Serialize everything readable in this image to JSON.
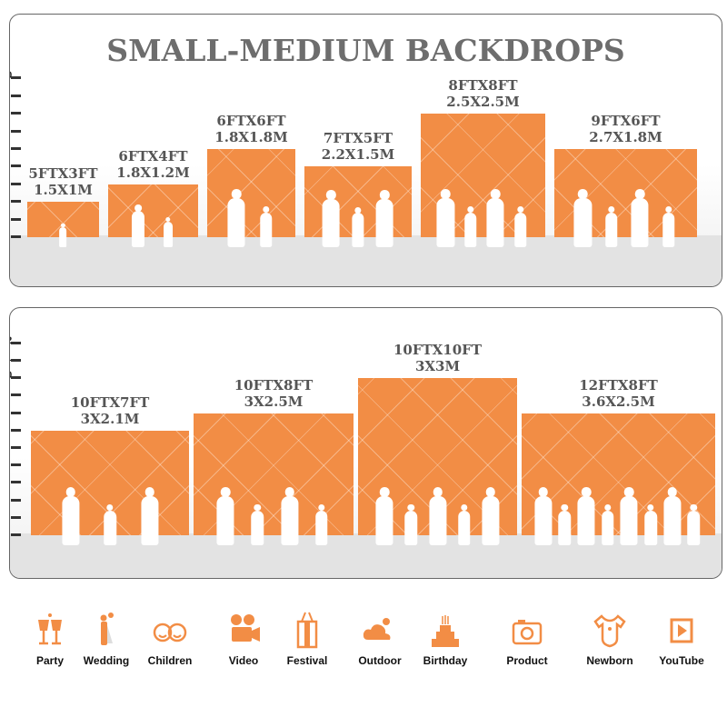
{
  "title": "SMALL-MEDIUM BACKDROPS",
  "accent_color": "#f28d45",
  "panels": [
    {
      "scale_ticks": [
        "1",
        "2",
        "3",
        "4",
        "5",
        "6",
        "7",
        "8",
        "9",
        "10"
      ],
      "bars": [
        {
          "ft": "5FTX3FT",
          "m": "1.5X1M",
          "width_ft": 5,
          "height_ft": 3,
          "people": 1
        },
        {
          "ft": "6FTX4FT",
          "m": "1.8X1.2M",
          "width_ft": 6,
          "height_ft": 4,
          "people": 2
        },
        {
          "ft": "6FTX6FT",
          "m": "1.8X1.8M",
          "width_ft": 6,
          "height_ft": 6,
          "people": 2
        },
        {
          "ft": "7FTX5FT",
          "m": "2.2X1.5M",
          "width_ft": 7,
          "height_ft": 5,
          "people": 3
        },
        {
          "ft": "8FTX8FT",
          "m": "2.5X2.5M",
          "width_ft": 8,
          "height_ft": 8,
          "people": 4
        },
        {
          "ft": "9FTX6FT",
          "m": "2.7X1.8M",
          "width_ft": 9,
          "height_ft": 6,
          "people": 4
        }
      ]
    },
    {
      "scale_ticks": [
        "1",
        "2",
        "3",
        "4",
        "5",
        "6",
        "7",
        "8",
        "9",
        "10",
        "11",
        "12"
      ],
      "bars": [
        {
          "ft": "10FTX7FT",
          "m": "3X2.1M",
          "width_ft": 10,
          "height_ft": 7,
          "people": 3
        },
        {
          "ft": "10FTX8FT",
          "m": "3X2.5M",
          "width_ft": 10,
          "height_ft": 8,
          "people": 4
        },
        {
          "ft": "10FTX10FT",
          "m": "3X3M",
          "width_ft": 10,
          "height_ft": 10,
          "people": 5
        },
        {
          "ft": "12FTX8FT",
          "m": "3.6X2.5M",
          "width_ft": 12,
          "height_ft": 8,
          "people": 8
        }
      ]
    }
  ],
  "usages": [
    {
      "label": "Party",
      "icon": "champagne-glasses-icon"
    },
    {
      "label": "Wedding",
      "icon": "wedding-couple-icon"
    },
    {
      "label": "Children",
      "icon": "children-faces-icon"
    },
    {
      "label": "Video",
      "icon": "film-camera-icon"
    },
    {
      "label": "Festival",
      "icon": "gift-box-icon"
    },
    {
      "label": "Outdoor",
      "icon": "cloud-icon"
    },
    {
      "label": "Birthday",
      "icon": "birthday-cake-icon"
    },
    {
      "label": "Product",
      "icon": "camera-icon"
    },
    {
      "label": "Newborn",
      "icon": "baby-onesie-icon"
    },
    {
      "label": "YouTube",
      "icon": "play-button-icon"
    }
  ]
}
